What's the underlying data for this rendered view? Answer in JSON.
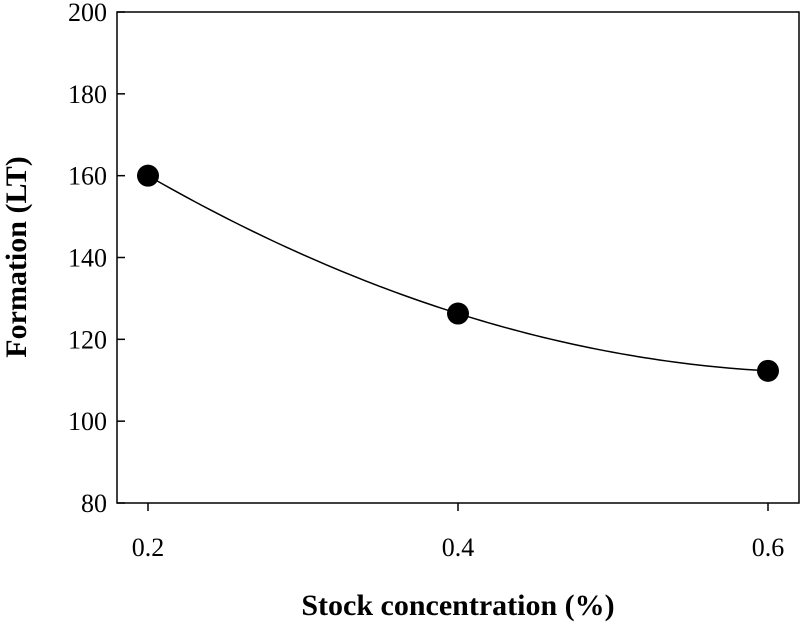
{
  "chart_data": {
    "type": "scatter",
    "title": "",
    "xlabel": "Stock concentration (%)",
    "ylabel": "Formation (LT)",
    "xlim": [
      0.18,
      0.62
    ],
    "ylim": [
      80,
      200
    ],
    "xticks": [
      0.2,
      0.4,
      0.6
    ],
    "xtick_labels": [
      "0.2",
      "0.4",
      "0.6"
    ],
    "yticks": [
      80,
      100,
      120,
      140,
      160,
      180,
      200
    ],
    "ytick_labels": [
      "80",
      "100",
      "120",
      "140",
      "160",
      "180",
      "200"
    ],
    "grid": false,
    "series": [
      {
        "name": "Formation",
        "x": [
          0.2,
          0.4,
          0.6
        ],
        "y": [
          160,
          126.3,
          112.3
        ],
        "marker": "filled-circle",
        "color": "#000000",
        "fit": "quadratic"
      }
    ]
  }
}
